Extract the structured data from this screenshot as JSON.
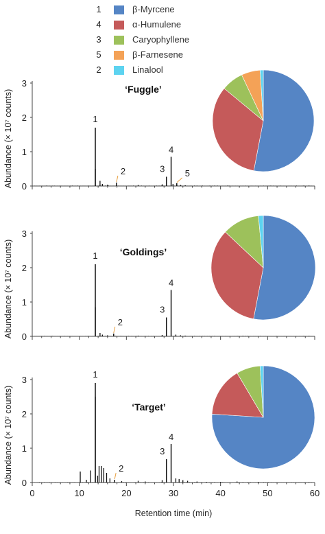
{
  "legend": [
    {
      "number": "1",
      "label": "β-Myrcene",
      "color": "#5585C5"
    },
    {
      "number": "4",
      "label": "α-Humulene",
      "color": "#C55A5A"
    },
    {
      "number": "3",
      "label": "Caryophyllene",
      "color": "#9DC15B"
    },
    {
      "number": "5",
      "label": "β-Farnesene",
      "color": "#F4A257"
    },
    {
      "number": "2",
      "label": "Linalool",
      "color": "#5DD3F0"
    }
  ],
  "x_axis": {
    "label": "Retention time (min)",
    "ticks": [
      "0",
      "10",
      "20",
      "30",
      "40",
      "50",
      "60"
    ]
  },
  "chart_data": [
    {
      "type": "line",
      "title": "‘Fuggle’",
      "xlabel": "Retention time (min)",
      "ylabel": "Abundance (× 10⁷ counts)",
      "xlim": [
        0,
        60
      ],
      "ylim": [
        0,
        3
      ],
      "yticks": [
        "0",
        "1",
        "2",
        "3"
      ],
      "peaks": [
        {
          "x": 13.4,
          "y": 1.7,
          "label": "1"
        },
        {
          "x": 17.9,
          "y": 0.1,
          "label": "2"
        },
        {
          "x": 28.5,
          "y": 0.27,
          "label": "3"
        },
        {
          "x": 29.5,
          "y": 0.85,
          "label": "4"
        },
        {
          "x": 30.7,
          "y": 0.08,
          "label": "5"
        }
      ],
      "minor_peaks": [
        [
          13.4,
          0.5
        ],
        [
          14.4,
          0.15
        ],
        [
          14.9,
          0.06
        ],
        [
          16.0,
          0.04
        ],
        [
          22.5,
          0.03
        ],
        [
          27.6,
          0.05
        ],
        [
          29.9,
          0.06
        ],
        [
          31.5,
          0.03
        ],
        [
          32.5,
          0.02
        ],
        [
          35.0,
          0.01
        ]
      ],
      "pie": {
        "labels": [
          "β-Myrcene",
          "α-Humulene",
          "Caryophyllene",
          "β-Farnesene",
          "Linalool"
        ],
        "values": [
          53,
          33,
          7,
          6,
          1
        ]
      }
    },
    {
      "type": "line",
      "title": "‘Goldings’",
      "xlabel": "Retention time (min)",
      "ylabel": "Abundance (× 10⁷ counts)",
      "xlim": [
        0,
        60
      ],
      "ylim": [
        0,
        3
      ],
      "yticks": [
        "0",
        "1",
        "2",
        "3"
      ],
      "peaks": [
        {
          "x": 13.4,
          "y": 2.1,
          "label": "1"
        },
        {
          "x": 17.3,
          "y": 0.08,
          "label": "2"
        },
        {
          "x": 28.5,
          "y": 0.55,
          "label": "3"
        },
        {
          "x": 29.5,
          "y": 1.35,
          "label": "4"
        }
      ],
      "minor_peaks": [
        [
          13.4,
          0.85
        ],
        [
          14.4,
          0.1
        ],
        [
          14.9,
          0.05
        ],
        [
          16.0,
          0.03
        ],
        [
          22.5,
          0.02
        ],
        [
          27.6,
          0.04
        ],
        [
          30.5,
          0.05
        ],
        [
          31.5,
          0.03
        ],
        [
          32.5,
          0.02
        ]
      ],
      "pie": {
        "labels": [
          "β-Myrcene",
          "α-Humulene",
          "Caryophyllene",
          "β-Farnesene",
          "Linalool"
        ],
        "values": [
          53,
          34,
          11.5,
          0,
          1.5
        ]
      }
    },
    {
      "type": "line",
      "title": "‘Target’",
      "xlabel": "Retention time (min)",
      "ylabel": "Abundance (× 10⁷ counts)",
      "xlim": [
        0,
        60
      ],
      "ylim": [
        0,
        3
      ],
      "yticks": [
        "0",
        "1",
        "2",
        "3"
      ],
      "peaks": [
        {
          "x": 13.4,
          "y": 2.9,
          "label": "1"
        },
        {
          "x": 17.5,
          "y": 0.08,
          "label": "2"
        },
        {
          "x": 28.5,
          "y": 0.68,
          "label": "3"
        },
        {
          "x": 29.5,
          "y": 1.12,
          "label": "4"
        }
      ],
      "minor_peaks": [
        [
          13.4,
          2.5
        ],
        [
          10.2,
          0.32
        ],
        [
          12.4,
          0.35
        ],
        [
          14.2,
          0.48
        ],
        [
          14.7,
          0.48
        ],
        [
          15.2,
          0.42
        ],
        [
          15.8,
          0.28
        ],
        [
          13.9,
          0.2
        ],
        [
          16.5,
          0.12
        ],
        [
          11.5,
          0.08
        ],
        [
          19.0,
          0.04
        ],
        [
          22.5,
          0.05
        ],
        [
          24.0,
          0.03
        ],
        [
          27.6,
          0.07
        ],
        [
          30.5,
          0.12
        ],
        [
          31.2,
          0.1
        ],
        [
          32.0,
          0.07
        ],
        [
          33.0,
          0.05
        ],
        [
          35.0,
          0.03
        ],
        [
          37.0,
          0.02
        ],
        [
          40.0,
          0.02
        ],
        [
          43.5,
          0.03
        ],
        [
          48.0,
          0.02
        ]
      ],
      "pie": {
        "labels": [
          "β-Myrcene",
          "α-Humulene",
          "Caryophyllene",
          "β-Farnesene",
          "Linalool"
        ],
        "values": [
          76,
          15.5,
          7.5,
          0,
          1
        ]
      }
    }
  ]
}
